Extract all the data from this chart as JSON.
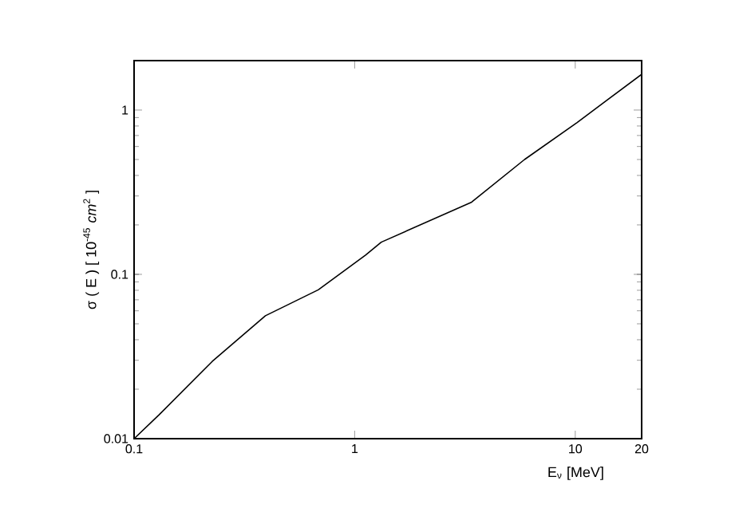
{
  "chart_data": {
    "type": "line",
    "xlabel": "E$_{ν}$ [MeV]",
    "ylabel": "σ ( E ) [ 10$^{-45}$ *cm*$^{2}$ ]",
    "log": "xy",
    "x": [
      0.1,
      0.13,
      0.226,
      0.394,
      0.684,
      1.12,
      1.32,
      3.39,
      5.89,
      10.2,
      20
    ],
    "series": [
      {
        "color": "#000000",
        "values": [
          0.01,
          0.014,
          0.0295,
          0.056,
          0.0805,
          0.131,
          0.157,
          0.275,
          0.5,
          0.84,
          1.65
        ]
      }
    ],
    "xlim": [
      0.1,
      20
    ],
    "ylim": [
      0.01,
      2
    ],
    "xticks": [
      0.1,
      1,
      10,
      20
    ],
    "yticks": [
      0.01,
      0.1,
      1
    ],
    "grid": false,
    "marker": "none",
    "line_style": "solid"
  }
}
